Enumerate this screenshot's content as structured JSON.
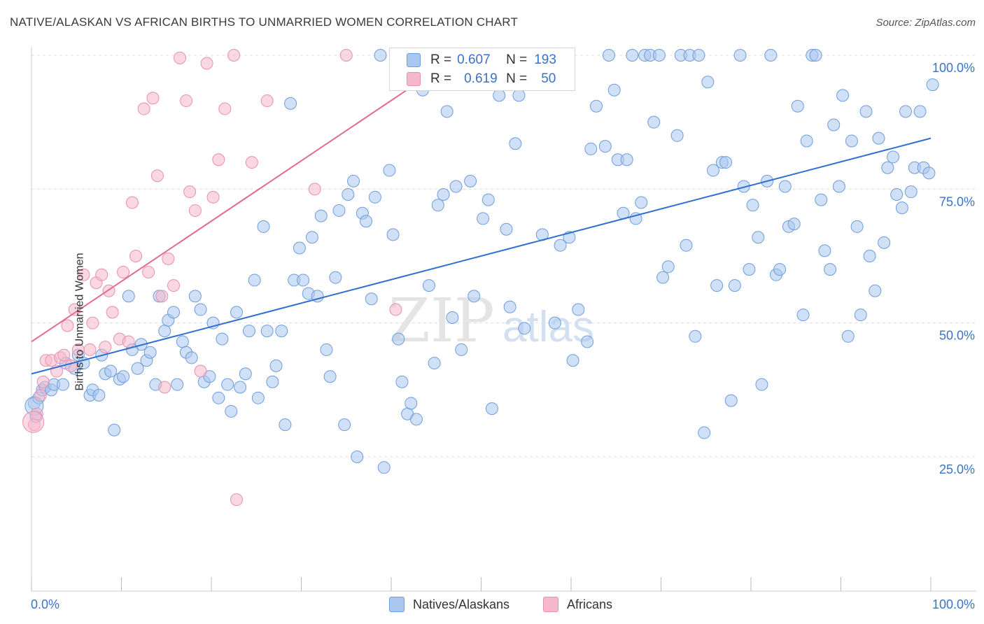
{
  "title": "NATIVE/ALASKAN VS AFRICAN BIRTHS TO UNMARRIED WOMEN CORRELATION CHART",
  "source": "Source: ZipAtlas.com",
  "watermark": {
    "zip": "ZIP",
    "atlas": "atlas"
  },
  "colors": {
    "blue_fill": "#aac7ef",
    "blue_stroke": "#6e9ddc",
    "blue_line": "#2f6fcf",
    "pink_fill": "#f6b8cb",
    "pink_stroke": "#e98fae",
    "pink_line": "#e36a92",
    "axis_label": "#3b72c7",
    "grid": "#dddddd"
  },
  "legend": {
    "rows": [
      {
        "r_key": "R =",
        "r_value": "0.607",
        "n_key": "N =",
        "n_value": "193",
        "color": "#aac7ef",
        "border": "#6e9ddc"
      },
      {
        "r_key": "R =",
        "r_value": "0.619",
        "n_key": "N =",
        "n_value": "50",
        "color": "#f6b8cb",
        "border": "#e98fae"
      }
    ]
  },
  "bottom_legend": [
    {
      "label": "Natives/Alaskans",
      "color": "#aac7ef",
      "border": "#6e9ddc"
    },
    {
      "label": "Africans",
      "color": "#f6b8cb",
      "border": "#e98fae"
    }
  ],
  "chart_data": {
    "type": "scatter",
    "ylabel": "Births to Unmarried Women",
    "x_tick_labels": [
      "0.0%",
      "100.0%"
    ],
    "y_tick_labels": [
      "25.0%",
      "50.0%",
      "75.0%",
      "100.0%"
    ],
    "y_ticks": [
      25,
      50,
      75,
      100
    ],
    "xlim": [
      0,
      100
    ],
    "ylim": [
      0,
      102
    ],
    "grid": "horizontal dashed",
    "series": [
      {
        "name": "Natives/Alaskans",
        "R": 0.607,
        "N": 193,
        "trend": [
          [
            0,
            40.5
          ],
          [
            100,
            84.5
          ]
        ],
        "points": [
          [
            0.3,
            35.0
          ],
          [
            0.5,
            32.5
          ],
          [
            0.8,
            36.0
          ],
          [
            1.2,
            37.5
          ],
          [
            1.5,
            38.0
          ],
          [
            2.2,
            37.5
          ],
          [
            2.5,
            38.5
          ],
          [
            3.5,
            38.5
          ],
          [
            3.8,
            42.5
          ],
          [
            4.8,
            41.5
          ],
          [
            5.2,
            44.0
          ],
          [
            5.8,
            42.5
          ],
          [
            6.5,
            36.5
          ],
          [
            6.8,
            37.5
          ],
          [
            7.5,
            36.5
          ],
          [
            7.8,
            44.0
          ],
          [
            8.2,
            40.5
          ],
          [
            8.8,
            41.0
          ],
          [
            9.2,
            30.0
          ],
          [
            9.8,
            39.5
          ],
          [
            10.2,
            40.0
          ],
          [
            10.8,
            55.0
          ],
          [
            11.2,
            45.0
          ],
          [
            11.8,
            41.5
          ],
          [
            12.2,
            46.0
          ],
          [
            12.8,
            43.0
          ],
          [
            13.2,
            44.5
          ],
          [
            13.8,
            38.5
          ],
          [
            14.2,
            55.0
          ],
          [
            14.8,
            48.5
          ],
          [
            15.2,
            50.5
          ],
          [
            15.8,
            52.0
          ],
          [
            16.2,
            38.5
          ],
          [
            16.8,
            46.5
          ],
          [
            17.2,
            44.5
          ],
          [
            17.8,
            43.5
          ],
          [
            18.2,
            55.0
          ],
          [
            18.8,
            52.5
          ],
          [
            19.2,
            39.0
          ],
          [
            19.8,
            40.0
          ],
          [
            20.2,
            50.0
          ],
          [
            20.8,
            36.0
          ],
          [
            21.2,
            47.0
          ],
          [
            21.8,
            38.5
          ],
          [
            22.2,
            33.5
          ],
          [
            22.8,
            52.0
          ],
          [
            23.2,
            38.0
          ],
          [
            23.8,
            40.5
          ],
          [
            24.2,
            48.5
          ],
          [
            24.8,
            58.0
          ],
          [
            25.2,
            36.0
          ],
          [
            25.8,
            68.0
          ],
          [
            26.2,
            48.5
          ],
          [
            26.8,
            39.0
          ],
          [
            27.2,
            42.0
          ],
          [
            27.8,
            48.5
          ],
          [
            28.2,
            31.0
          ],
          [
            28.8,
            91.0
          ],
          [
            29.2,
            58.0
          ],
          [
            29.8,
            64.0
          ],
          [
            30.2,
            58.0
          ],
          [
            30.8,
            55.5
          ],
          [
            31.2,
            66.0
          ],
          [
            31.8,
            55.0
          ],
          [
            32.2,
            70.0
          ],
          [
            32.8,
            45.0
          ],
          [
            33.2,
            40.0
          ],
          [
            33.8,
            58.5
          ],
          [
            34.2,
            71.0
          ],
          [
            34.8,
            31.0
          ],
          [
            35.2,
            74.0
          ],
          [
            35.8,
            76.5
          ],
          [
            36.2,
            25.0
          ],
          [
            36.8,
            70.5
          ],
          [
            37.2,
            69.0
          ],
          [
            37.8,
            54.5
          ],
          [
            38.2,
            73.5
          ],
          [
            38.8,
            100.0
          ],
          [
            39.2,
            23.0
          ],
          [
            39.8,
            78.5
          ],
          [
            40.2,
            66.5
          ],
          [
            40.8,
            47.0
          ],
          [
            41.2,
            39.0
          ],
          [
            41.8,
            33.0
          ],
          [
            42.2,
            35.0
          ],
          [
            42.8,
            32.0
          ],
          [
            43.5,
            93.5
          ],
          [
            44.2,
            57.0
          ],
          [
            44.8,
            42.5
          ],
          [
            45.2,
            72.0
          ],
          [
            45.8,
            74.0
          ],
          [
            46.2,
            89.5
          ],
          [
            46.8,
            51.0
          ],
          [
            47.2,
            75.5
          ],
          [
            47.8,
            45.0
          ],
          [
            48.8,
            76.5
          ],
          [
            49.2,
            55.0
          ],
          [
            50.2,
            69.5
          ],
          [
            50.8,
            73.0
          ],
          [
            51.2,
            34.0
          ],
          [
            52.0,
            92.5
          ],
          [
            52.8,
            67.5
          ],
          [
            53.2,
            53.0
          ],
          [
            53.8,
            83.5
          ],
          [
            54.2,
            92.5
          ],
          [
            54.8,
            49.0
          ],
          [
            55.2,
            100.0
          ],
          [
            56.8,
            66.5
          ],
          [
            58.2,
            50.0
          ],
          [
            58.8,
            64.5
          ],
          [
            59.8,
            66.0
          ],
          [
            60.2,
            43.0
          ],
          [
            60.8,
            52.5
          ],
          [
            61.8,
            46.5
          ],
          [
            62.2,
            82.5
          ],
          [
            62.8,
            90.5
          ],
          [
            63.8,
            83.0
          ],
          [
            64.2,
            100.0
          ],
          [
            64.8,
            93.5
          ],
          [
            65.2,
            80.5
          ],
          [
            65.8,
            70.5
          ],
          [
            66.2,
            80.5
          ],
          [
            66.8,
            100.0
          ],
          [
            67.2,
            69.5
          ],
          [
            67.8,
            72.5
          ],
          [
            68.2,
            100.0
          ],
          [
            68.8,
            100.0
          ],
          [
            69.2,
            87.5
          ],
          [
            69.8,
            100.0
          ],
          [
            70.2,
            58.5
          ],
          [
            70.8,
            60.5
          ],
          [
            71.8,
            85.0
          ],
          [
            72.2,
            100.0
          ],
          [
            72.8,
            64.5
          ],
          [
            73.2,
            100.0
          ],
          [
            73.8,
            47.5
          ],
          [
            74.2,
            100.0
          ],
          [
            74.8,
            29.5
          ],
          [
            75.2,
            95.0
          ],
          [
            75.8,
            78.5
          ],
          [
            76.2,
            57.0
          ],
          [
            76.8,
            80.0
          ],
          [
            77.2,
            80.0
          ],
          [
            77.8,
            35.5
          ],
          [
            78.2,
            57.0
          ],
          [
            78.8,
            100.0
          ],
          [
            79.2,
            75.5
          ],
          [
            79.8,
            60.0
          ],
          [
            80.2,
            72.0
          ],
          [
            80.8,
            66.0
          ],
          [
            81.2,
            38.5
          ],
          [
            81.8,
            76.5
          ],
          [
            82.2,
            100.0
          ],
          [
            82.8,
            59.0
          ],
          [
            83.2,
            60.0
          ],
          [
            83.8,
            75.5
          ],
          [
            84.2,
            68.0
          ],
          [
            84.8,
            68.5
          ],
          [
            85.2,
            90.5
          ],
          [
            85.8,
            51.5
          ],
          [
            86.2,
            84.0
          ],
          [
            86.8,
            100.0
          ],
          [
            87.2,
            100.0
          ],
          [
            87.8,
            73.0
          ],
          [
            88.2,
            63.5
          ],
          [
            88.8,
            60.0
          ],
          [
            89.2,
            87.0
          ],
          [
            89.8,
            75.5
          ],
          [
            90.2,
            92.5
          ],
          [
            90.8,
            47.5
          ],
          [
            91.2,
            84.0
          ],
          [
            91.8,
            68.0
          ],
          [
            92.2,
            51.5
          ],
          [
            92.8,
            89.5
          ],
          [
            93.2,
            62.5
          ],
          [
            93.8,
            56.0
          ],
          [
            94.2,
            84.5
          ],
          [
            94.8,
            65.0
          ],
          [
            95.2,
            79.0
          ],
          [
            95.8,
            81.0
          ],
          [
            96.2,
            74.0
          ],
          [
            96.8,
            71.5
          ],
          [
            97.2,
            89.5
          ],
          [
            97.8,
            74.5
          ],
          [
            98.2,
            79.0
          ],
          [
            98.8,
            89.5
          ],
          [
            99.2,
            79.0
          ],
          [
            99.8,
            78.0
          ],
          [
            100.2,
            94.5
          ]
        ]
      },
      {
        "name": "Africans",
        "R": 0.619,
        "N": 50,
        "trend": [
          [
            0,
            46.5
          ],
          [
            47.5,
            100.0
          ]
        ],
        "points": [
          [
            0.3,
            31.0
          ],
          [
            0.6,
            33.0
          ],
          [
            1.0,
            36.5
          ],
          [
            1.3,
            39.0
          ],
          [
            1.6,
            43.0
          ],
          [
            2.2,
            43.0
          ],
          [
            2.8,
            41.0
          ],
          [
            3.2,
            43.5
          ],
          [
            3.6,
            44.0
          ],
          [
            4.0,
            49.5
          ],
          [
            4.4,
            42.0
          ],
          [
            4.8,
            52.5
          ],
          [
            5.2,
            45.0
          ],
          [
            5.8,
            59.0
          ],
          [
            6.5,
            45.0
          ],
          [
            6.8,
            50.0
          ],
          [
            7.2,
            57.5
          ],
          [
            7.8,
            59.0
          ],
          [
            8.2,
            45.5
          ],
          [
            8.6,
            56.0
          ],
          [
            9.0,
            52.0
          ],
          [
            9.8,
            47.0
          ],
          [
            10.2,
            59.5
          ],
          [
            10.8,
            46.5
          ],
          [
            11.2,
            72.5
          ],
          [
            11.6,
            62.5
          ],
          [
            12.5,
            90.0
          ],
          [
            13.0,
            59.5
          ],
          [
            13.5,
            92.0
          ],
          [
            14.0,
            77.5
          ],
          [
            14.5,
            55.0
          ],
          [
            14.8,
            38.0
          ],
          [
            15.2,
            62.0
          ],
          [
            15.8,
            57.0
          ],
          [
            16.5,
            99.5
          ],
          [
            17.2,
            91.5
          ],
          [
            17.6,
            74.5
          ],
          [
            18.2,
            71.0
          ],
          [
            18.8,
            41.0
          ],
          [
            19.5,
            98.5
          ],
          [
            20.2,
            73.5
          ],
          [
            20.8,
            80.5
          ],
          [
            21.5,
            90.0
          ],
          [
            22.5,
            100.0
          ],
          [
            22.8,
            17.0
          ],
          [
            24.5,
            80.0
          ],
          [
            26.2,
            91.5
          ],
          [
            31.5,
            75.0
          ],
          [
            35.0,
            100.0
          ],
          [
            40.5,
            52.5
          ]
        ]
      }
    ]
  }
}
